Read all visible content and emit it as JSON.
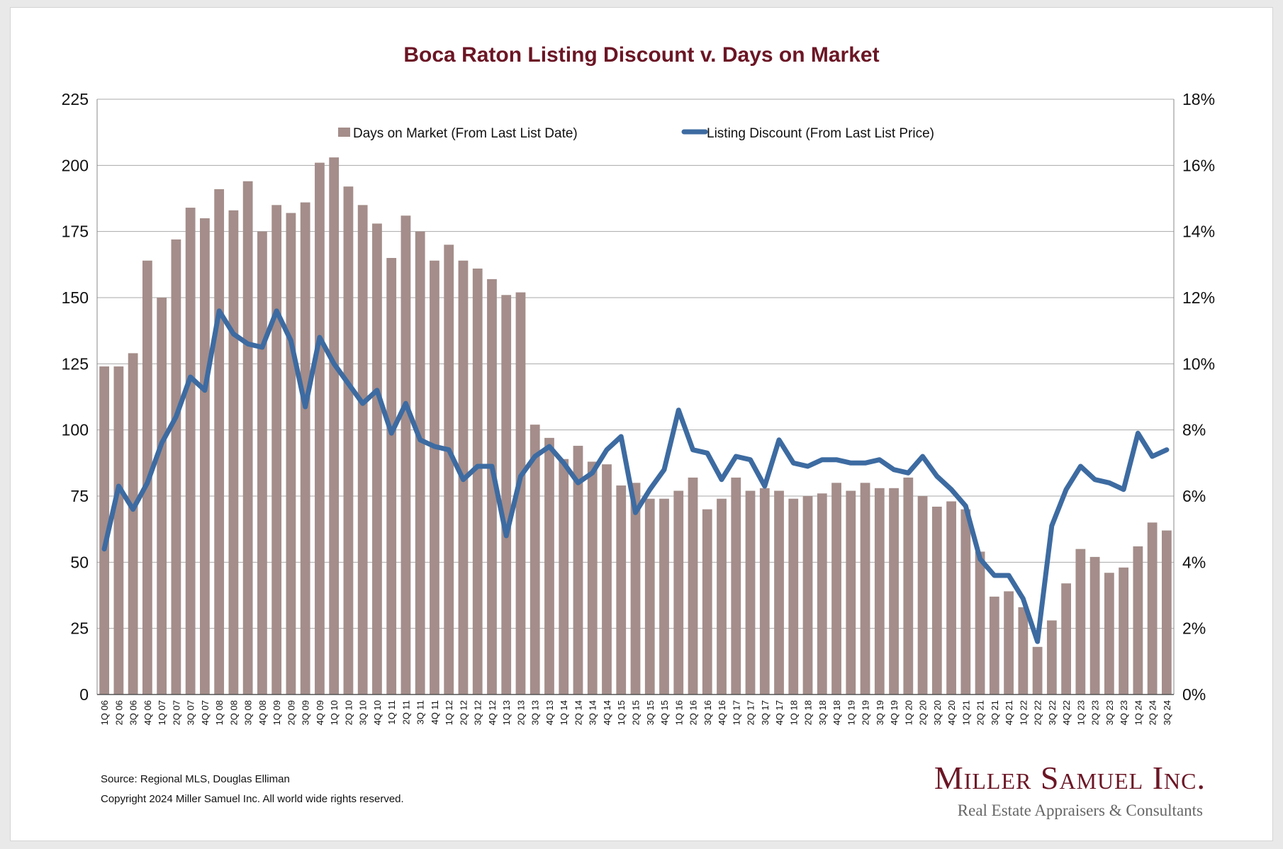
{
  "chart_data": {
    "type": "bar",
    "title": "Boca Raton Listing Discount v. Days on Market",
    "categories": [
      "1Q 06",
      "2Q 06",
      "3Q 06",
      "4Q 06",
      "1Q 07",
      "2Q 07",
      "3Q 07",
      "4Q 07",
      "1Q 08",
      "2Q 08",
      "3Q 08",
      "4Q 08",
      "1Q 09",
      "2Q 09",
      "3Q 09",
      "4Q 09",
      "1Q 10",
      "2Q 10",
      "3Q 10",
      "4Q 10",
      "1Q 11",
      "2Q 11",
      "3Q 11",
      "4Q 11",
      "1Q 12",
      "2Q 12",
      "3Q 12",
      "4Q 12",
      "1Q 13",
      "2Q 13",
      "3Q 13",
      "4Q 13",
      "1Q 14",
      "2Q 14",
      "3Q 14",
      "4Q 14",
      "1Q 15",
      "2Q 15",
      "3Q 15",
      "4Q 15",
      "1Q 16",
      "2Q 16",
      "3Q 16",
      "4Q 16",
      "1Q 17",
      "2Q 17",
      "3Q 17",
      "4Q 17",
      "1Q 18",
      "2Q 18",
      "3Q 18",
      "4Q 18",
      "1Q 19",
      "2Q 19",
      "3Q 19",
      "4Q 19",
      "1Q 20",
      "2Q 20",
      "3Q 20",
      "4Q 20",
      "1Q 21",
      "2Q 21",
      "3Q 21",
      "4Q 21",
      "1Q 22",
      "2Q 22",
      "3Q 22",
      "4Q 22",
      "1Q 23",
      "2Q 23",
      "3Q 23",
      "4Q 23",
      "1Q 24",
      "2Q 24",
      "3Q 24"
    ],
    "series": [
      {
        "name": "Days on Market (From Last List Date)",
        "type": "bar",
        "axis": "left",
        "color": "#a48d8a",
        "values": [
          124,
          124,
          129,
          164,
          150,
          172,
          184,
          180,
          191,
          183,
          194,
          175,
          185,
          182,
          186,
          201,
          203,
          192,
          185,
          178,
          165,
          181,
          175,
          164,
          170,
          164,
          161,
          157,
          151,
          152,
          102,
          97,
          89,
          94,
          88,
          87,
          79,
          80,
          74,
          74,
          77,
          82,
          70,
          74,
          82,
          77,
          78,
          77,
          74,
          75,
          76,
          80,
          77,
          80,
          78,
          78,
          82,
          75,
          71,
          73,
          70,
          54,
          37,
          39,
          33,
          18,
          28,
          42,
          55,
          52,
          46,
          48,
          56,
          65,
          62
        ]
      },
      {
        "name": "Listing Discount (From Last List Price)",
        "type": "line",
        "axis": "right",
        "color": "#3d6ba1",
        "values": [
          4.4,
          6.3,
          5.6,
          6.4,
          7.6,
          8.4,
          9.6,
          9.2,
          11.6,
          10.9,
          10.6,
          10.5,
          11.6,
          10.7,
          8.7,
          10.8,
          10.0,
          9.4,
          8.8,
          9.2,
          7.9,
          8.8,
          7.7,
          7.5,
          7.4,
          6.5,
          6.9,
          6.9,
          4.8,
          6.6,
          7.2,
          7.5,
          7.0,
          6.4,
          6.7,
          7.4,
          7.8,
          5.5,
          6.2,
          6.8,
          8.6,
          7.4,
          7.3,
          6.5,
          7.2,
          7.1,
          6.3,
          7.7,
          7.0,
          6.9,
          7.1,
          7.1,
          7.0,
          7.0,
          7.1,
          6.8,
          6.7,
          7.2,
          6.6,
          6.2,
          5.7,
          4.1,
          3.6,
          3.6,
          2.9,
          1.6,
          5.1,
          6.2,
          6.9,
          6.5,
          6.4,
          6.2,
          7.9,
          7.2,
          7.4
        ]
      }
    ],
    "y_left": {
      "min": 0,
      "max": 225,
      "ticks": [
        "0",
        "25",
        "50",
        "75",
        "100",
        "125",
        "150",
        "175",
        "200",
        "225"
      ]
    },
    "y_right": {
      "min": 0,
      "max": 18,
      "ticks": [
        "0%",
        "2%",
        "4%",
        "6%",
        "8%",
        "10%",
        "12%",
        "14%",
        "16%",
        "18%"
      ]
    },
    "grid": true,
    "legend": "top-center"
  },
  "footer": {
    "source": "Source: Regional MLS, Douglas Elliman",
    "copyright": "Copyright 2024 Miller Samuel Inc.  All world wide rights reserved."
  },
  "brand": {
    "name": "Miller Samuel Inc.",
    "tagline": "Real Estate Appraisers & Consultants"
  }
}
